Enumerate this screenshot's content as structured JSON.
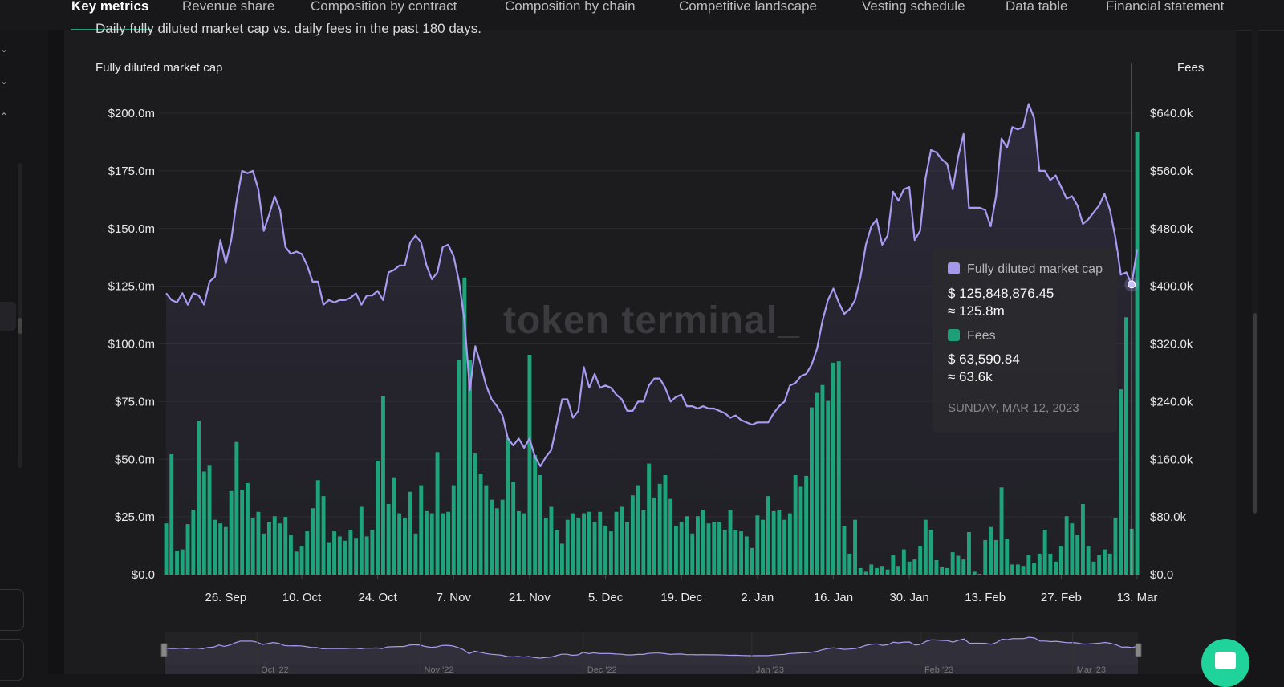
{
  "tabs": [
    "Key metrics",
    "Revenue share",
    "Composition by contract",
    "Composition by chain",
    "Competitive landscape",
    "Vesting schedule",
    "Data table",
    "Financial statement"
  ],
  "active_tab": "Key metrics",
  "subtitle": "Daily fully diluted market cap vs. daily fees in the past 180 days.",
  "watermark": "token terminal_",
  "colors": {
    "mcap_line": "#a99bf2",
    "fees_bar": "#1fa37a",
    "background": "#1c1c1f"
  },
  "tooltip": {
    "mcap_label": "Fully diluted market cap",
    "mcap_value": "$ 125,848,876.45",
    "mcap_approx": "≈ 125.8m",
    "fees_label": "Fees",
    "fees_value": "$ 63,590.84",
    "fees_approx": "≈ 63.6k",
    "date": "SUNDAY, MAR 12, 2023"
  },
  "navigator": {
    "labels": [
      "Oct '22",
      "Nov '22",
      "Dec '22",
      "Jan '23",
      "Feb '23",
      "Mar '23"
    ]
  },
  "chart_data": {
    "type": "bar+line",
    "x_interval": "daily",
    "xlim": [
      "2022-09-15",
      "2023-03-13"
    ],
    "x_tick_labels": [
      "26. Sep",
      "10. Oct",
      "24. Oct",
      "7. Nov",
      "21. Nov",
      "5. Dec",
      "19. Dec",
      "2. Jan",
      "16. Jan",
      "30. Jan",
      "13. Feb",
      "27. Feb",
      "13. Mar"
    ],
    "y_left": {
      "label": "Fully diluted market cap",
      "ticks": [
        "$0.0",
        "$25.0m",
        "$50.0m",
        "$75.0m",
        "$100.0m",
        "$125.0m",
        "$150.0m",
        "$175.0m",
        "$200.0m"
      ],
      "ylim": [
        0,
        200
      ],
      "unit": "$m"
    },
    "y_right": {
      "label": "Fees",
      "ticks": [
        "$0.0",
        "$80.0k",
        "$160.0k",
        "$240.0k",
        "$320.0k",
        "$400.0k",
        "$480.0k",
        "$560.0k",
        "$640.0k"
      ],
      "ylim": [
        0,
        640
      ],
      "unit": "$k"
    },
    "grid": true,
    "series": [
      {
        "name": "Fully diluted market cap",
        "type": "line",
        "axis": "left",
        "values": [
          122,
          119,
          118,
          122,
          117,
          122,
          121,
          117,
          127,
          129,
          145,
          135,
          145,
          162,
          175,
          174,
          175,
          167,
          149,
          156,
          164,
          158,
          142,
          139,
          140,
          139,
          134,
          127,
          127,
          117,
          119,
          118,
          119,
          119,
          120,
          122,
          117,
          121,
          121,
          123,
          119,
          131,
          132,
          134,
          134,
          144,
          147,
          144,
          134,
          128,
          131,
          142,
          143,
          138,
          127,
          110,
          80,
          99,
          91,
          82,
          76,
          73,
          69,
          59,
          56,
          59,
          55,
          59,
          51,
          47,
          51,
          54,
          65,
          76,
          76,
          68,
          71,
          90,
          81,
          87,
          81,
          82,
          81,
          78,
          76,
          71,
          71,
          75,
          75,
          82,
          85,
          85,
          81,
          75,
          77,
          78,
          73,
          73,
          72,
          73,
          72,
          72,
          71,
          70,
          68,
          69,
          67,
          66,
          65,
          66,
          66,
          66,
          70,
          73,
          75,
          82,
          83,
          86,
          87,
          91,
          98,
          110,
          119,
          124,
          118,
          113,
          115,
          119,
          129,
          143,
          151,
          154,
          143,
          147,
          166,
          162,
          167,
          168,
          145,
          149,
          172,
          184,
          183,
          180,
          178,
          167,
          181,
          191,
          159,
          159,
          159,
          158,
          151,
          164,
          189,
          185,
          194,
          193,
          194,
          204,
          198,
          175,
          175,
          171,
          173,
          168,
          163,
          164,
          160,
          152,
          154,
          157,
          160,
          165,
          158,
          146,
          130,
          131,
          125.8,
          141
        ]
      },
      {
        "name": "Fees",
        "type": "bar",
        "axis": "right",
        "values": [
          71,
          167,
          33,
          35,
          70,
          90,
          213,
          143,
          151,
          76,
          71,
          66,
          116,
          184,
          118,
          127,
          78,
          87,
          57,
          73,
          81,
          71,
          80,
          55,
          32,
          40,
          60,
          92,
          131,
          109,
          45,
          60,
          53,
          47,
          62,
          51,
          94,
          53,
          62,
          158,
          248,
          98,
          135,
          85,
          79,
          115,
          57,
          124,
          88,
          85,
          170,
          85,
          87,
          124,
          298,
          412,
          298,
          168,
          140,
          124,
          104,
          92,
          104,
          189,
          129,
          88,
          85,
          305,
          166,
          138,
          79,
          94,
          62,
          43,
          76,
          85,
          79,
          85,
          87,
          73,
          87,
          68,
          60,
          87,
          94,
          73,
          110,
          124,
          89,
          154,
          107,
          126,
          138,
          105,
          67,
          73,
          81,
          57,
          81,
          90,
          71,
          73,
          73,
          62,
          90,
          62,
          60,
          53,
          37,
          82,
          76,
          109,
          88,
          90,
          76,
          85,
          138,
          122,
          137,
          232,
          252,
          263,
          241,
          294,
          296,
          67,
          29,
          76,
          9,
          4,
          14,
          9,
          12,
          7,
          27,
          12,
          35,
          18,
          21,
          40,
          76,
          62,
          20,
          10,
          9,
          31,
          26,
          21,
          59,
          4,
          1,
          48,
          66,
          48,
          121,
          49,
          14,
          14,
          12,
          27,
          16,
          29,
          62,
          29,
          18,
          40,
          81,
          71,
          55,
          98,
          40,
          18,
          27,
          35,
          29,
          79,
          257,
          357,
          63.6,
          614
        ]
      }
    ],
    "hover_date": "2023-03-12"
  }
}
